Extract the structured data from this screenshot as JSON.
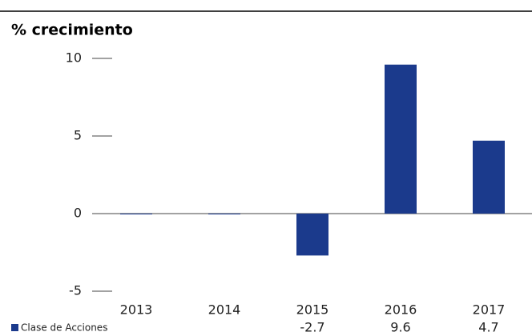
{
  "chart_data": {
    "type": "bar",
    "title": "% crecimiento",
    "categories": [
      "2013",
      "2014",
      "2015",
      "2016",
      "2017"
    ],
    "series": [
      {
        "name": "Clase de Acciones",
        "color": "#1b3a8c",
        "values": [
          0,
          0,
          -2.7,
          9.6,
          4.7
        ],
        "value_labels": [
          null,
          null,
          "-2.7",
          "9.6",
          "4.7"
        ]
      }
    ],
    "ylim": [
      -5,
      10
    ],
    "yticks": [
      -5,
      0,
      5,
      10
    ]
  }
}
